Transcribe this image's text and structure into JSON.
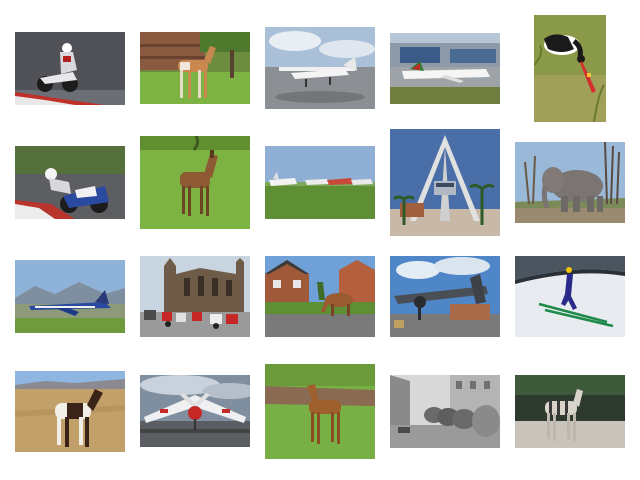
{
  "gallery": {
    "thumbnails": [
      {
        "subject": "motorcycle-racer",
        "interactable": false
      },
      {
        "subject": "foal",
        "interactable": false
      },
      {
        "subject": "small-airplane",
        "interactable": false
      },
      {
        "subject": "airliner",
        "interactable": false
      },
      {
        "subject": "saddle-billed-stork",
        "interactable": false
      },
      {
        "subject": "motorcycle-racer-leaning",
        "interactable": false
      },
      {
        "subject": "brown-foal",
        "interactable": false
      },
      {
        "subject": "light-aircraft-row",
        "interactable": false
      },
      {
        "subject": "airport-tower",
        "interactable": false
      },
      {
        "subject": "elephant",
        "interactable": false
      },
      {
        "subject": "jet-fighter",
        "interactable": false
      },
      {
        "subject": "scooters-church",
        "interactable": false
      },
      {
        "subject": "horse-grazing",
        "interactable": false
      },
      {
        "subject": "vintage-airplane",
        "interactable": false
      },
      {
        "subject": "ski-jumper",
        "interactable": false
      },
      {
        "subject": "pinto-horse",
        "interactable": false
      },
      {
        "subject": "propeller-plane-front",
        "interactable": false
      },
      {
        "subject": "chestnut-foal",
        "interactable": false
      },
      {
        "subject": "elephants-street",
        "interactable": false
      },
      {
        "subject": "zebra-foal",
        "interactable": false
      }
    ]
  }
}
